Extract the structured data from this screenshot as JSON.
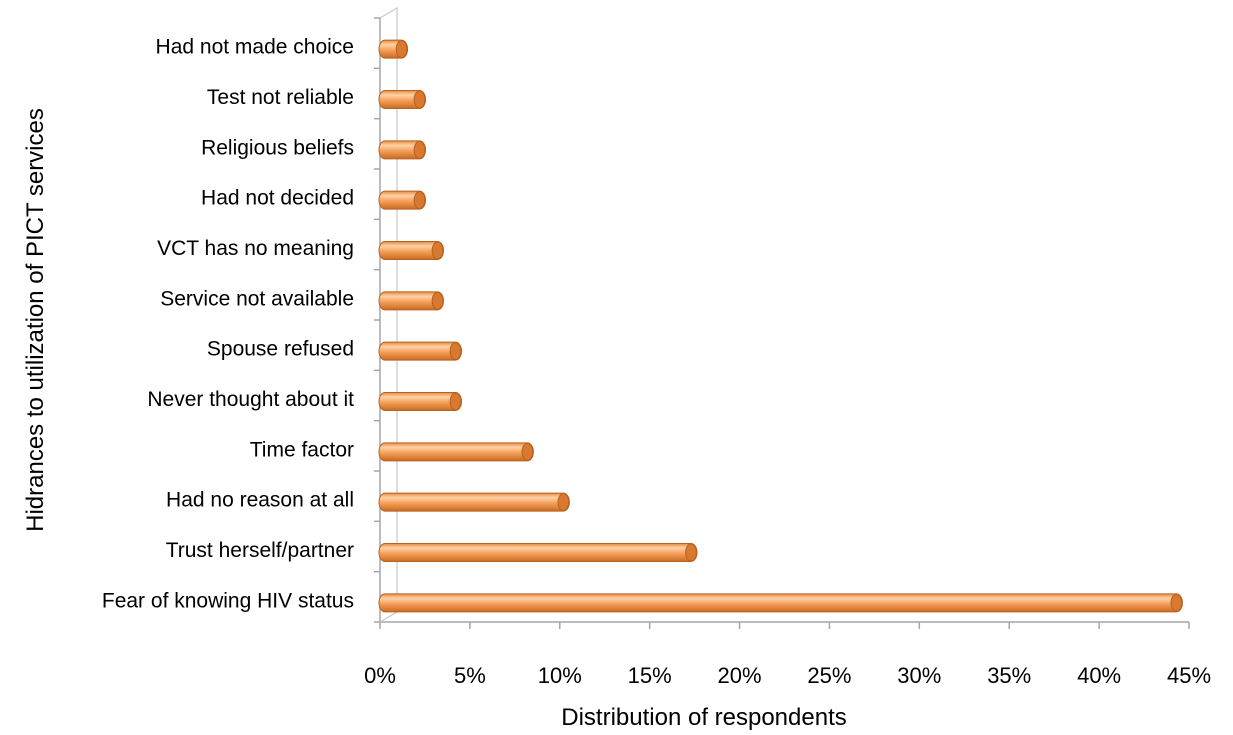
{
  "chart_data": {
    "type": "bar",
    "orientation": "horizontal",
    "style": "3d-cylinder",
    "categories": [
      "Had not made choice",
      "Test not reliable",
      "Religious beliefs",
      "Had not decided",
      "VCT has no meaning",
      "Service not available",
      "Spouse refused",
      "Never thought about it",
      "Time factor",
      "Had no reason at all",
      "Trust herself/partner",
      "Fear of knowing HIV status"
    ],
    "values": [
      1.2,
      2.2,
      2.2,
      2.2,
      3.2,
      3.2,
      4.2,
      4.2,
      8.2,
      10.2,
      17.3,
      44.3
    ],
    "xlabel": "Distribution of respondents",
    "ylabel": "Hidrances to utilization of PICT services",
    "xlim": [
      0,
      45
    ],
    "xticks": [
      "0%",
      "5%",
      "10%",
      "15%",
      "20%",
      "25%",
      "30%",
      "35%",
      "40%",
      "45%"
    ],
    "grid": false,
    "colors": {
      "bar": "#f5a05a",
      "bar_dark": "#c96a22",
      "bar_light": "#ffd2a8",
      "axis": "#a6a6a6"
    }
  }
}
